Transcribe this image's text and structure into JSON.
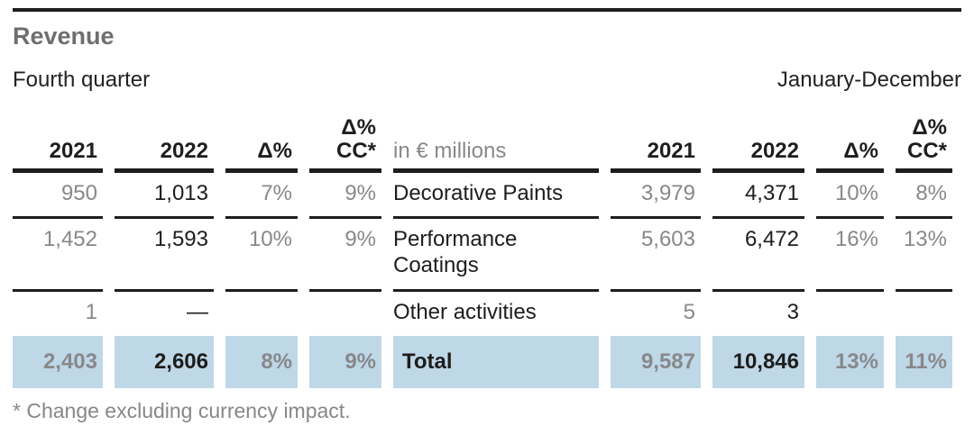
{
  "page": {
    "title": "Revenue",
    "left_period_label": "Fourth quarter",
    "right_period_label": "January-December",
    "footnote": "* Change excluding currency impact."
  },
  "colors": {
    "rule_black": "#1d1d1b",
    "title_gray": "#6d6e70",
    "muted_gray": "#87888a",
    "total_row_blue": "#bfd8e8"
  },
  "table": {
    "unit_label": "in € millions",
    "columns": {
      "y2021": "2021",
      "y2022": "2022",
      "delta": "Δ%",
      "delta_cc_line1": "Δ%",
      "delta_cc_line2": "CC*"
    },
    "rows": [
      {
        "label": "Decorative Paints",
        "q4": {
          "y2021": "950",
          "y2022": "1,013",
          "delta": "7%",
          "delta_cc": "9%"
        },
        "fy": {
          "y2021": "3,979",
          "y2022": "4,371",
          "delta": "10%",
          "delta_cc": "8%"
        }
      },
      {
        "label": "Performance Coatings",
        "q4": {
          "y2021": "1,452",
          "y2022": "1,593",
          "delta": "10%",
          "delta_cc": "9%"
        },
        "fy": {
          "y2021": "5,603",
          "y2022": "6,472",
          "delta": "16%",
          "delta_cc": "13%"
        }
      },
      {
        "label": "Other activities",
        "q4": {
          "y2021": "1",
          "y2022": "—",
          "delta": "",
          "delta_cc": ""
        },
        "fy": {
          "y2021": "5",
          "y2022": "3",
          "delta": "",
          "delta_cc": ""
        }
      },
      {
        "label": "Total",
        "q4": {
          "y2021": "2,403",
          "y2022": "2,606",
          "delta": "8%",
          "delta_cc": "9%"
        },
        "fy": {
          "y2021": "9,587",
          "y2022": "10,846",
          "delta": "13%",
          "delta_cc": "11%"
        }
      }
    ]
  }
}
